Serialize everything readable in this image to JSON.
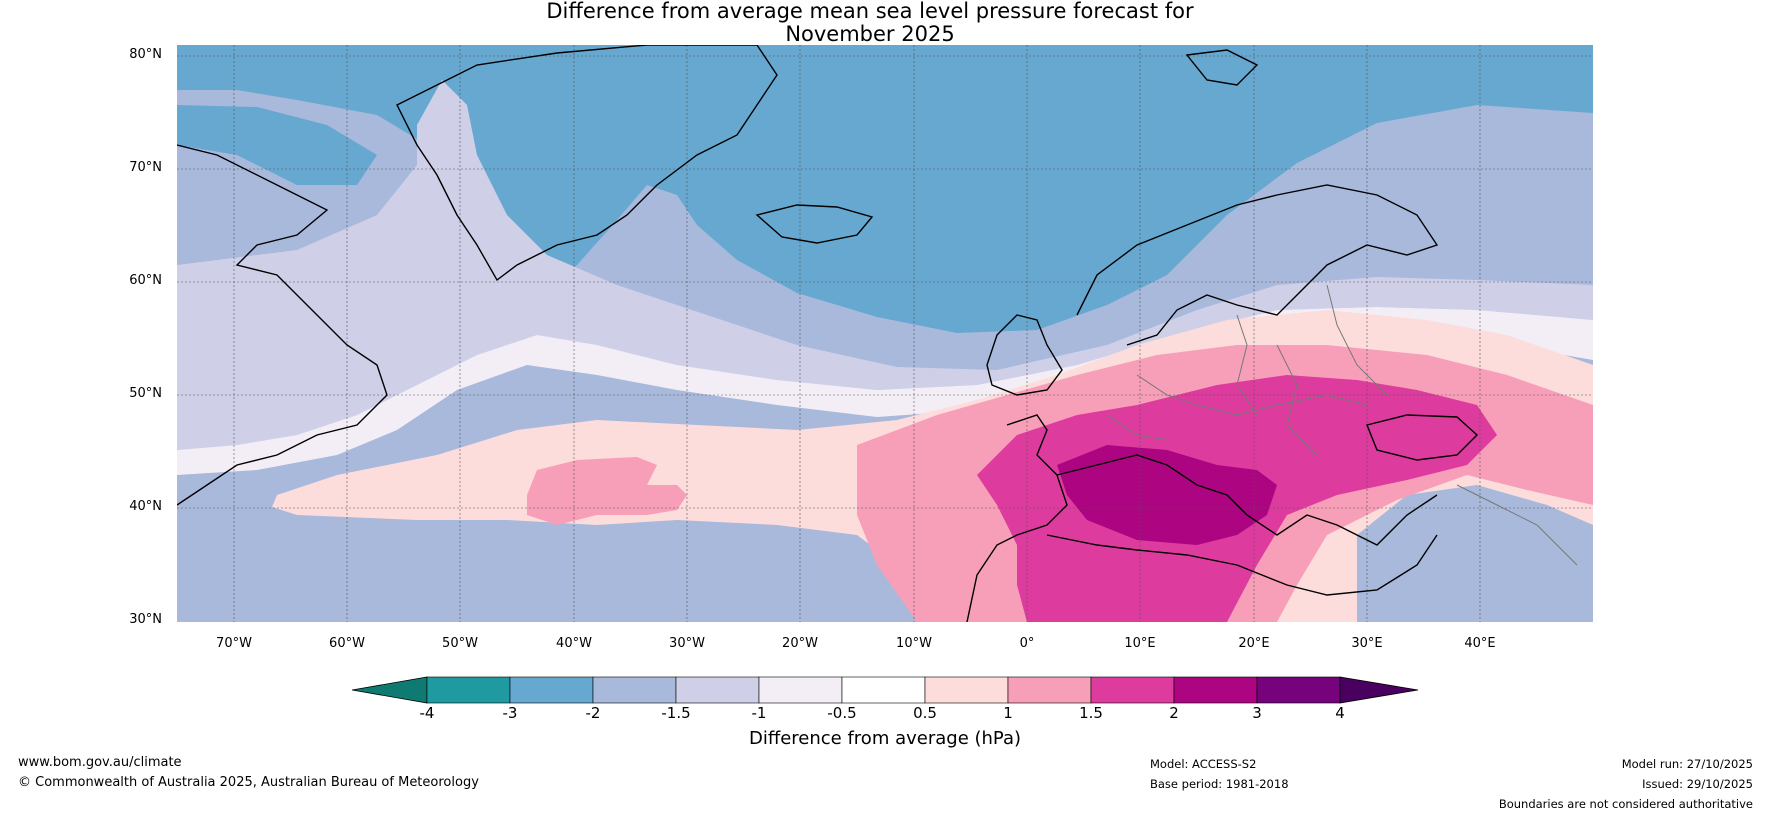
{
  "title_line1": "Difference from average mean sea level pressure forecast for",
  "title_line2": "November 2025",
  "lat_labels": [
    "80°N",
    "70°N",
    "60°N",
    "50°N",
    "40°N",
    "30°N"
  ],
  "lon_labels": [
    "70°W",
    "60°W",
    "50°W",
    "40°W",
    "30°W",
    "20°W",
    "10°W",
    "0°",
    "10°E",
    "20°E",
    "30°E",
    "40°E"
  ],
  "colorbar": {
    "ticks": [
      "-4",
      "-3",
      "-2",
      "-1.5",
      "-1",
      "-0.5",
      "0.5",
      "1",
      "1.5",
      "2",
      "3",
      "4"
    ],
    "colors": [
      "#0e7a72",
      "#1e9aa0",
      "#66a8d0",
      "#a8b9db",
      "#cfd0e8",
      "#f3eef6",
      "#ffffff",
      "#fddcdc",
      "#f79fb9",
      "#dd3c9e",
      "#ad0482",
      "#76037c",
      "#4a005f"
    ],
    "label": "Difference from average (hPa)"
  },
  "map_colors": {
    "m2": "#66a8d0",
    "m15": "#a8b9db",
    "m1": "#cfd0e8",
    "m05": "#f3eef6",
    "zero": "#ffffff",
    "p05": "#fddcdc",
    "p1": "#f79fb9",
    "p15": "#dd3c9e",
    "p2": "#ad0482"
  },
  "footer": {
    "website": "www.bom.gov.au/climate",
    "copyright": "© Commonwealth of Australia 2025, Australian Bureau of Meteorology",
    "model": "Model: ACCESS-S2",
    "base_period": "Base period: 1981-2018",
    "model_run": "Model run: 27/10/2025",
    "issued": "Issued: 29/10/2025",
    "boundaries": "Boundaries are not considered authoritative"
  }
}
